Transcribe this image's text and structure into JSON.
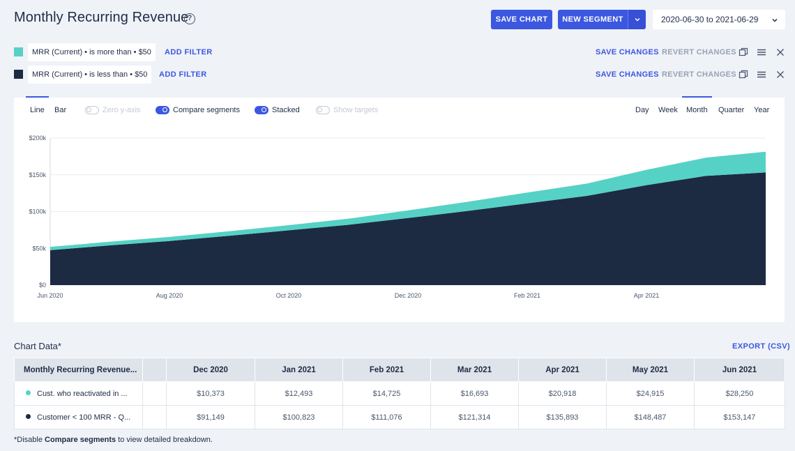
{
  "header": {
    "title": "Monthly Recurring Revenue",
    "help_icon": "question-circle-icon",
    "save_chart": "SAVE CHART",
    "new_segment": "NEW SEGMENT",
    "date_range": "2020-06-30 to 2021-06-29"
  },
  "segments": [
    {
      "label": "MRR (Current) • is more than • $50",
      "color": "#56d1c5",
      "add_filter": "ADD FILTER",
      "save": "SAVE CHANGES",
      "revert": "REVERT CHANGES"
    },
    {
      "label": "MRR (Current) • is less than • $50",
      "color": "#1c2b42",
      "add_filter": "ADD FILTER",
      "save": "SAVE CHANGES",
      "revert": "REVERT CHANGES"
    }
  ],
  "controls": {
    "line": "Line",
    "bar": "Bar",
    "zero_y_axis": "Zero y-axis",
    "compare_segments": "Compare segments",
    "stacked": "Stacked",
    "show_targets": "Show targets",
    "day": "Day",
    "week": "Week",
    "month": "Month",
    "quarter": "Quarter",
    "year": "Year",
    "selected_type": "Line",
    "selected_interval": "Month",
    "zero_y_axis_on": false,
    "compare_segments_on": true,
    "stacked_on": true,
    "show_targets_on": false
  },
  "chart_data": {
    "type": "area",
    "stacked": true,
    "x": [
      "Jun 2020",
      "Jul 2020",
      "Aug 2020",
      "Sep 2020",
      "Oct 2020",
      "Nov 2020",
      "Dec 2020",
      "Jan 2021",
      "Feb 2021",
      "Mar 2021",
      "Apr 2021",
      "May 2021",
      "Jun 2021"
    ],
    "x_tick_labels": [
      "Jun 2020",
      "Aug 2020",
      "Oct 2020",
      "Dec 2020",
      "Feb 2021",
      "Apr 2021"
    ],
    "y_tick_labels": [
      "$0",
      "$50k",
      "$100k",
      "$150k",
      "$200k"
    ],
    "ylim": [
      0,
      200000
    ],
    "grid": true,
    "series": [
      {
        "color": "#1c2b42",
        "values": [
          47500,
          54000,
          60000,
          67000,
          74500,
          82000,
          91149,
          100823,
          111076,
          121314,
          135893,
          148487,
          153147
        ]
      },
      {
        "color": "#56d1c5",
        "values": [
          4500,
          5000,
          5500,
          6300,
          7000,
          8200,
          10373,
          12493,
          14725,
          16693,
          20918,
          24915,
          28250
        ]
      }
    ]
  },
  "table": {
    "title": "Chart Data*",
    "export": "EXPORT (CSV)",
    "first_col_header": "Monthly Recurring Revenue...",
    "columns": [
      "Dec 2020",
      "Jan 2021",
      "Feb 2021",
      "Mar 2021",
      "Apr 2021",
      "May 2021",
      "Jun 2021"
    ],
    "rows": [
      {
        "label": "Cust. who reactivated in ...",
        "color": "#56d1c5",
        "values": [
          "$10,373",
          "$12,493",
          "$14,725",
          "$16,693",
          "$20,918",
          "$24,915",
          "$28,250"
        ]
      },
      {
        "label": "Customer < 100 MRR - Q...",
        "color": "#1c2b42",
        "values": [
          "$91,149",
          "$100,823",
          "$111,076",
          "$121,314",
          "$135,893",
          "$148,487",
          "$153,147"
        ]
      }
    ]
  },
  "footnote": {
    "prefix": "*Disable ",
    "bold": "Compare segments",
    "suffix": " to view detailed breakdown."
  }
}
